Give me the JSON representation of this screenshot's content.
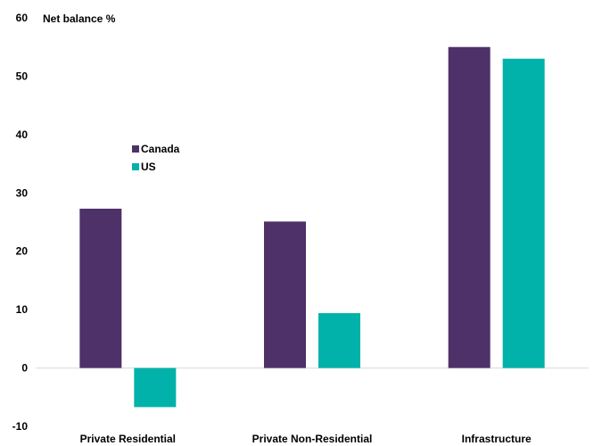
{
  "chart_data": {
    "type": "bar",
    "ylabel": "Net balance %",
    "categories": [
      "Private Residential",
      "Private Non-Residential",
      "Infrastructure"
    ],
    "series": [
      {
        "name": "Canada",
        "color": "#4e3168",
        "values": [
          27.3,
          25.1,
          55.0
        ]
      },
      {
        "name": "US",
        "color": "#00b2a9",
        "values": [
          -6.7,
          9.4,
          53.0
        ]
      }
    ],
    "ylim": [
      -10,
      60
    ],
    "yticks": [
      -10,
      0,
      10,
      20,
      30,
      40,
      50,
      60
    ],
    "grid": false,
    "legend_position": "upper-left"
  }
}
